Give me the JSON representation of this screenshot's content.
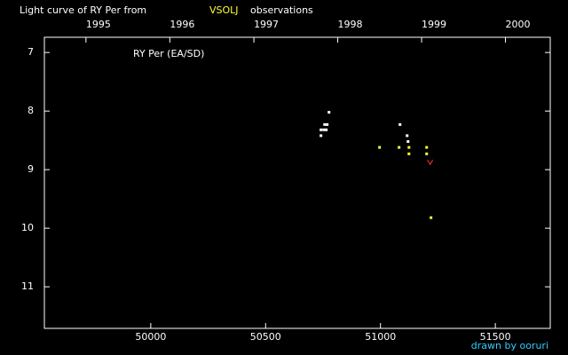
{
  "chart_data": {
    "type": "scatter",
    "title": "Light curve of RY Per from",
    "source": "VSOLJ",
    "title_suffix": "observations",
    "annotation": "RY Per (EA/SD)",
    "credit": "drawn by ooruri",
    "xlim": [
      49537,
      51739
    ],
    "xticks": [
      50000,
      50500,
      51000,
      51500
    ],
    "x2ticks": [
      {
        "value": 49718,
        "label": "1995"
      },
      {
        "value": 50083,
        "label": "1996"
      },
      {
        "value": 50449,
        "label": "1997"
      },
      {
        "value": 50814,
        "label": "1998"
      },
      {
        "value": 51179,
        "label": "1999"
      },
      {
        "value": 51544,
        "label": "2000"
      }
    ],
    "ylim": [
      6.74,
      11.71
    ],
    "yticks": [
      7,
      8,
      9,
      10,
      11
    ],
    "y_inverted": true,
    "series": [
      {
        "color": "#ffffff",
        "marker": "dot",
        "x": [
          50741,
          50741,
          50753,
          50757,
          50768,
          50764,
          50776,
          51085,
          51116,
          51120
        ],
        "values": [
          8.42,
          8.32,
          8.32,
          8.23,
          8.23,
          8.32,
          8.02,
          8.23,
          8.42,
          8.52
        ]
      },
      {
        "color": "#ffff33",
        "marker": "dot",
        "x": [
          50996,
          51081,
          51124,
          51124,
          51201,
          51201,
          51220
        ],
        "values": [
          8.62,
          8.62,
          8.62,
          8.73,
          8.62,
          8.73,
          9.82
        ]
      },
      {
        "color": "#ff3333",
        "marker": "v",
        "x": [
          51216
        ],
        "values": [
          8.88
        ]
      }
    ]
  }
}
